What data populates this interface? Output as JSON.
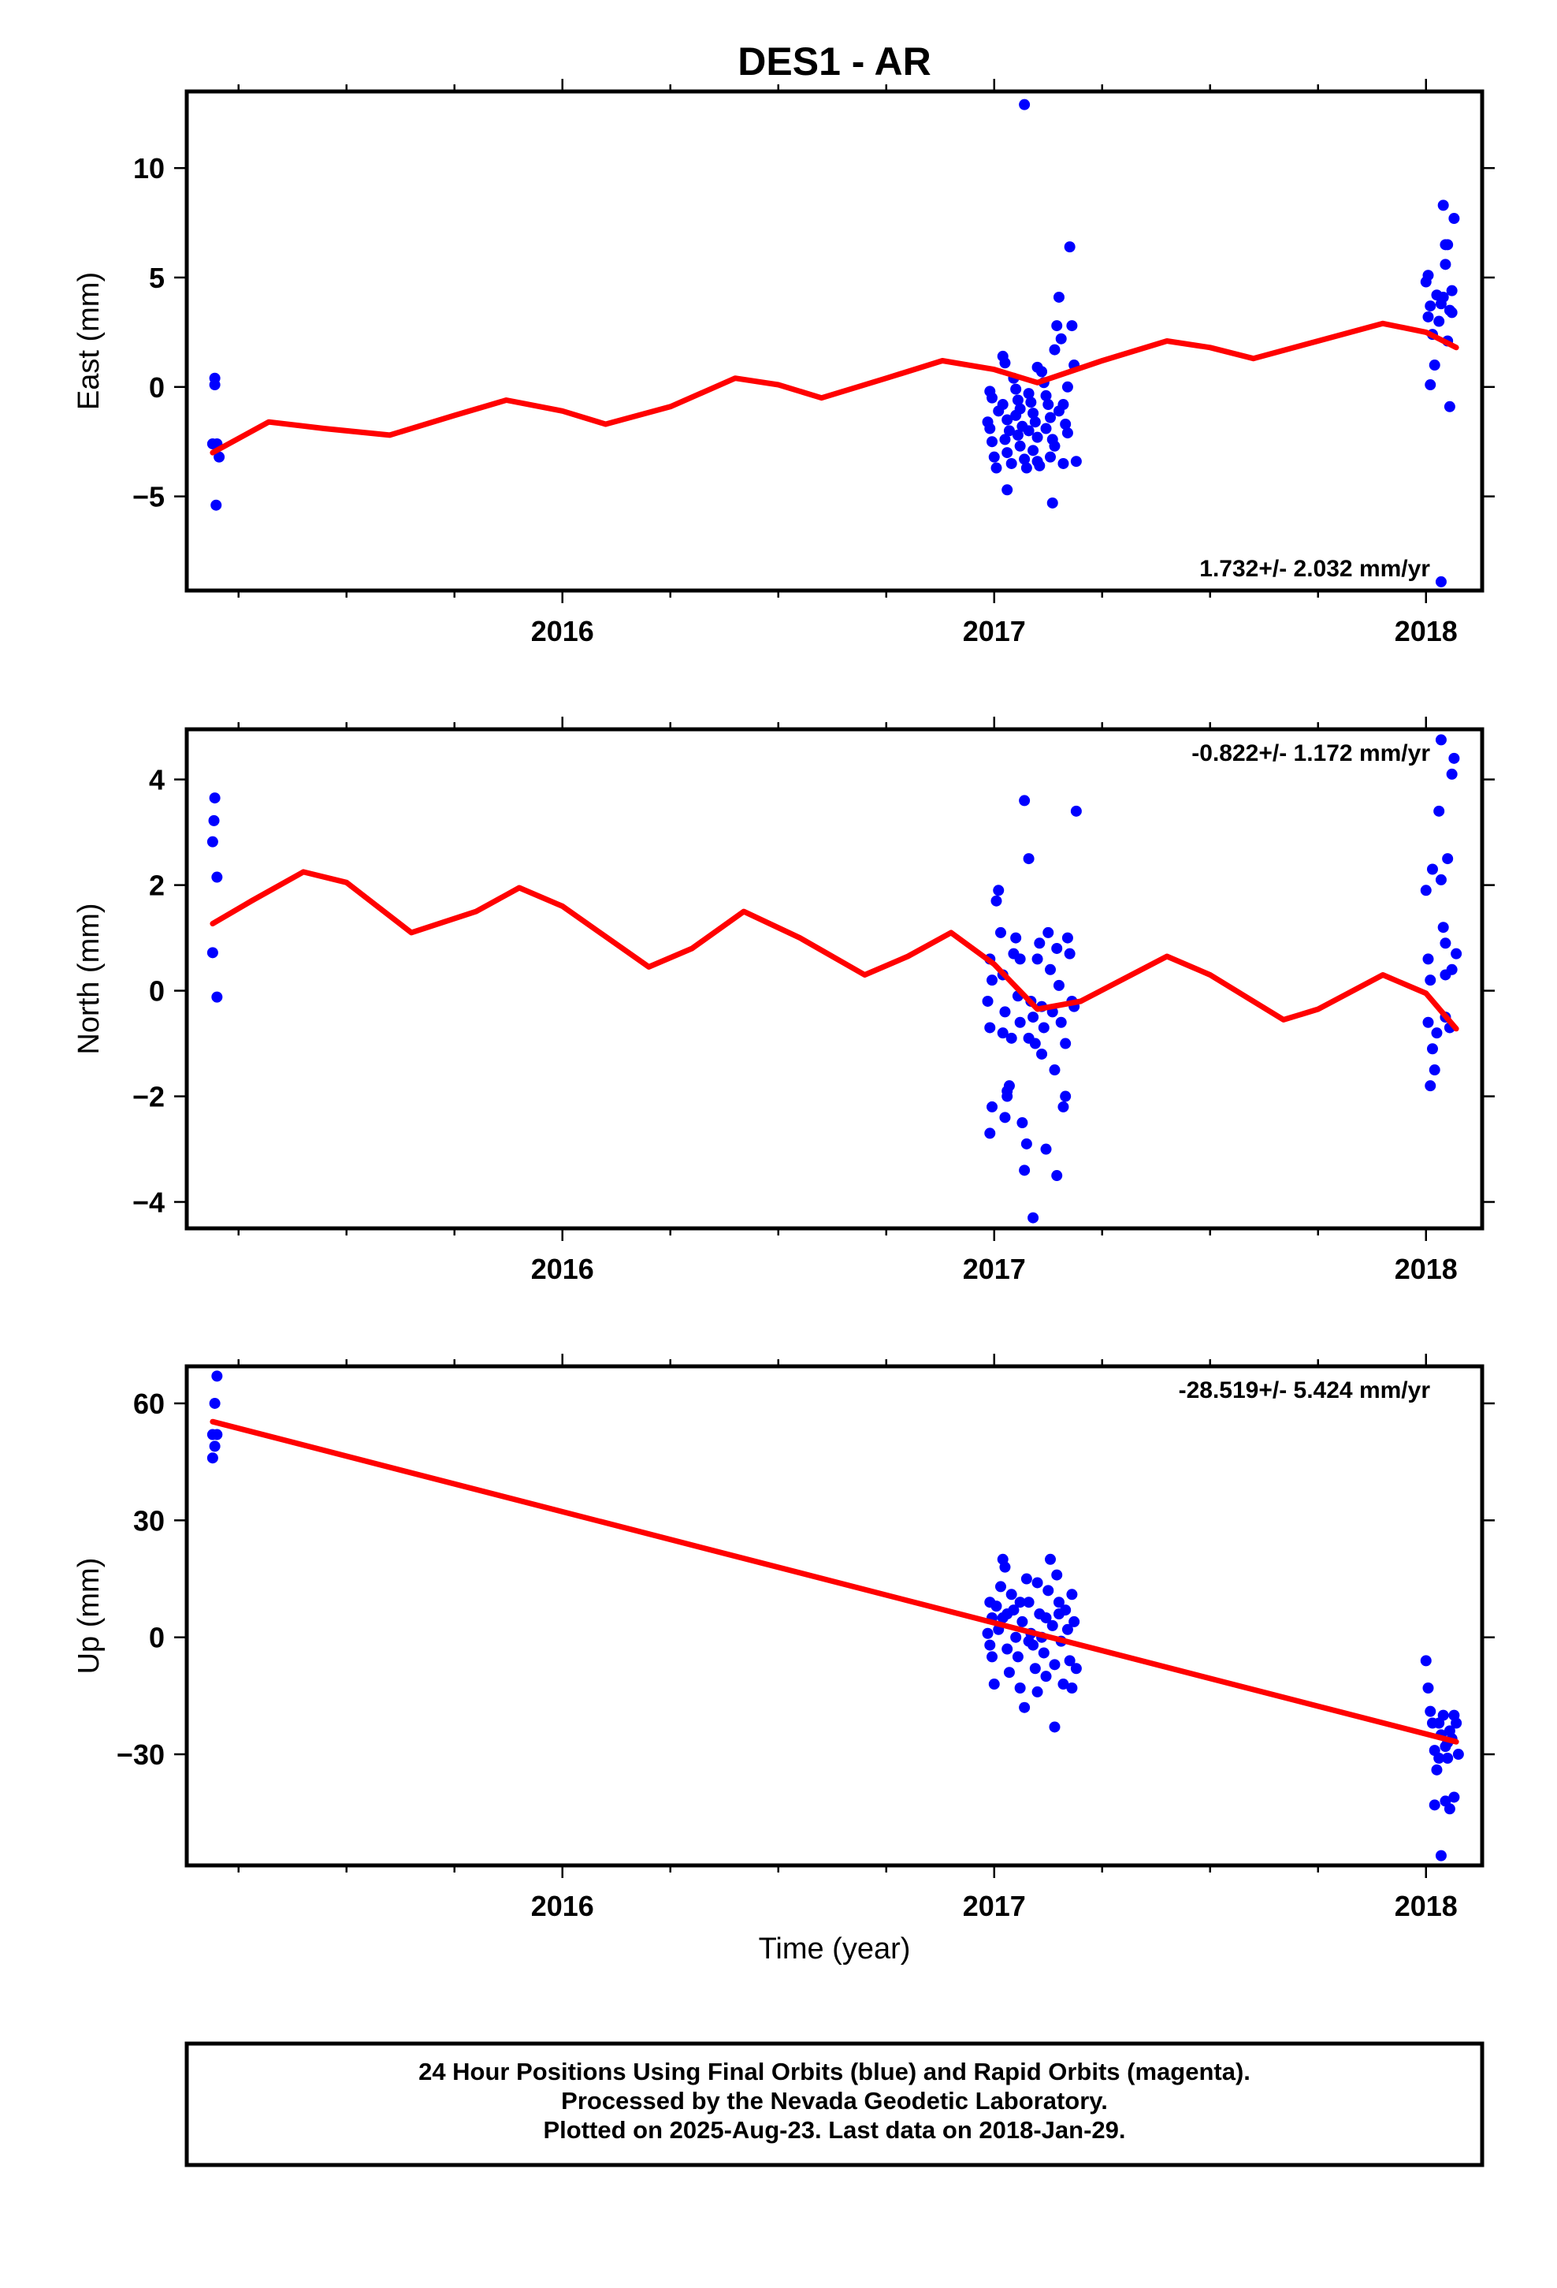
{
  "title": "DES1 - AR",
  "xlabel": "Time (year)",
  "colors": {
    "data": "#0000ff",
    "model": "#ff0000",
    "frame": "#000000"
  },
  "footer": {
    "line1": "24 Hour Positions Using Final Orbits (blue) and Rapid Orbits (magenta).",
    "line2": "Processed by the Nevada Geodetic Laboratory.",
    "line3": "Plotted on 2025-Aug-23. Last data on 2018-Jan-29."
  },
  "chart_data": [
    {
      "type": "scatter",
      "component": "east",
      "ylabel": "East (mm)",
      "xlim": [
        2015.13,
        2018.13
      ],
      "ylim": [
        -9.3,
        13.5
      ],
      "xticks": [
        2016,
        2017,
        2018
      ],
      "yticks": [
        -5,
        0,
        5,
        10
      ],
      "ytick_labels": [
        "−5",
        "0",
        "5",
        "10"
      ],
      "rate_text": "1.732+/- 2.032 mm/yr",
      "rate_position": "bottom-right",
      "points": [
        [
          2015.195,
          0.4
        ],
        [
          2015.195,
          0.1
        ],
        [
          2015.19,
          -2.6
        ],
        [
          2015.2,
          -2.6
        ],
        [
          2015.205,
          -3.2
        ],
        [
          2015.198,
          -5.4
        ],
        [
          2016.99,
          -0.2
        ],
        [
          2016.995,
          -0.5
        ],
        [
          2016.985,
          -1.6
        ],
        [
          2016.99,
          -1.9
        ],
        [
          2016.995,
          -2.5
        ],
        [
          2017.0,
          -3.2
        ],
        [
          2017.005,
          -3.7
        ],
        [
          2017.02,
          1.4
        ],
        [
          2017.025,
          1.1
        ],
        [
          2017.02,
          -0.8
        ],
        [
          2017.01,
          -1.1
        ],
        [
          2017.03,
          -1.5
        ],
        [
          2017.035,
          -2.0
        ],
        [
          2017.025,
          -2.4
        ],
        [
          2017.03,
          -3.0
        ],
        [
          2017.04,
          -3.5
        ],
        [
          2017.03,
          -4.7
        ],
        [
          2017.045,
          0.4
        ],
        [
          2017.05,
          -0.1
        ],
        [
          2017.055,
          -0.6
        ],
        [
          2017.06,
          -1.0
        ],
        [
          2017.05,
          -1.3
        ],
        [
          2017.065,
          -1.8
        ],
        [
          2017.055,
          -2.2
        ],
        [
          2017.06,
          -2.7
        ],
        [
          2017.07,
          -3.3
        ],
        [
          2017.075,
          -3.7
        ],
        [
          2017.07,
          12.9
        ],
        [
          2017.08,
          -0.3
        ],
        [
          2017.085,
          -0.7
        ],
        [
          2017.09,
          -1.2
        ],
        [
          2017.095,
          -1.6
        ],
        [
          2017.08,
          -2.0
        ],
        [
          2017.1,
          -2.3
        ],
        [
          2017.09,
          -2.9
        ],
        [
          2017.1,
          -3.4
        ],
        [
          2017.105,
          -3.6
        ],
        [
          2017.11,
          0.7
        ],
        [
          2017.115,
          0.2
        ],
        [
          2017.12,
          -0.4
        ],
        [
          2017.125,
          -0.8
        ],
        [
          2017.13,
          -1.4
        ],
        [
          2017.12,
          -1.9
        ],
        [
          2017.135,
          -2.4
        ],
        [
          2017.13,
          -3.2
        ],
        [
          2017.135,
          -5.3
        ],
        [
          2017.14,
          1.7
        ],
        [
          2017.145,
          2.8
        ],
        [
          2017.15,
          4.1
        ],
        [
          2017.155,
          2.2
        ],
        [
          2017.16,
          -0.8
        ],
        [
          2017.165,
          -1.7
        ],
        [
          2017.17,
          -2.1
        ],
        [
          2017.16,
          -3.5
        ],
        [
          2017.175,
          6.4
        ],
        [
          2017.18,
          2.8
        ],
        [
          2017.185,
          1.0
        ],
        [
          2017.19,
          -3.4
        ],
        [
          2017.17,
          0.0
        ],
        [
          2017.15,
          -1.1
        ],
        [
          2017.14,
          -2.7
        ],
        [
          2017.1,
          0.9
        ],
        [
          2018.005,
          5.1
        ],
        [
          2018.0,
          4.8
        ],
        [
          2018.01,
          3.7
        ],
        [
          2018.005,
          3.2
        ],
        [
          2018.015,
          2.4
        ],
        [
          2018.01,
          0.1
        ],
        [
          2018.02,
          1.0
        ],
        [
          2018.025,
          4.2
        ],
        [
          2018.03,
          3.0
        ],
        [
          2018.035,
          3.8
        ],
        [
          2018.04,
          8.3
        ],
        [
          2018.045,
          6.5
        ],
        [
          2018.04,
          4.1
        ],
        [
          2018.05,
          6.5
        ],
        [
          2018.045,
          5.6
        ],
        [
          2018.055,
          3.5
        ],
        [
          2018.05,
          2.1
        ],
        [
          2018.06,
          4.4
        ],
        [
          2018.065,
          7.7
        ],
        [
          2018.055,
          -0.9
        ],
        [
          2018.035,
          -8.9
        ],
        [
          2018.06,
          3.4
        ]
      ],
      "model": [
        [
          2015.19,
          -3.0
        ],
        [
          2015.32,
          -1.6
        ],
        [
          2015.45,
          -1.9
        ],
        [
          2015.6,
          -2.2
        ],
        [
          2015.75,
          -1.3
        ],
        [
          2015.87,
          -0.6
        ],
        [
          2016.0,
          -1.1
        ],
        [
          2016.1,
          -1.7
        ],
        [
          2016.25,
          -0.9
        ],
        [
          2016.4,
          0.4
        ],
        [
          2016.5,
          0.1
        ],
        [
          2016.6,
          -0.5
        ],
        [
          2016.75,
          0.4
        ],
        [
          2016.88,
          1.2
        ],
        [
          2017.0,
          0.8
        ],
        [
          2017.1,
          0.2
        ],
        [
          2017.25,
          1.2
        ],
        [
          2017.4,
          2.1
        ],
        [
          2017.5,
          1.8
        ],
        [
          2017.6,
          1.3
        ],
        [
          2017.75,
          2.1
        ],
        [
          2017.9,
          2.9
        ],
        [
          2018.0,
          2.5
        ],
        [
          2018.07,
          1.8
        ]
      ]
    },
    {
      "type": "scatter",
      "component": "north",
      "ylabel": "North (mm)",
      "xlim": [
        2015.13,
        2018.13
      ],
      "ylim": [
        -4.5,
        4.95
      ],
      "xticks": [
        2016,
        2017,
        2018
      ],
      "yticks": [
        -4,
        -2,
        0,
        2,
        4
      ],
      "ytick_labels": [
        "−4",
        "−2",
        "0",
        "2",
        "4"
      ],
      "rate_text": "-0.822+/- 1.172 mm/yr",
      "rate_position": "top-right",
      "points": [
        [
          2015.195,
          3.65
        ],
        [
          2015.193,
          3.22
        ],
        [
          2015.19,
          2.82
        ],
        [
          2015.2,
          2.15
        ],
        [
          2015.19,
          0.72
        ],
        [
          2015.2,
          -0.12
        ],
        [
          2016.99,
          0.6
        ],
        [
          2016.995,
          0.2
        ],
        [
          2016.985,
          -0.2
        ],
        [
          2016.99,
          -0.7
        ],
        [
          2016.995,
          -2.2
        ],
        [
          2016.99,
          -2.7
        ],
        [
          2017.005,
          1.7
        ],
        [
          2017.01,
          1.9
        ],
        [
          2017.015,
          1.1
        ],
        [
          2017.02,
          0.3
        ],
        [
          2017.025,
          -0.4
        ],
        [
          2017.02,
          -0.8
        ],
        [
          2017.03,
          -2.0
        ],
        [
          2017.025,
          -2.4
        ],
        [
          2017.035,
          -1.8
        ],
        [
          2017.04,
          -0.9
        ],
        [
          2017.045,
          0.7
        ],
        [
          2017.05,
          1.0
        ],
        [
          2017.055,
          -0.1
        ],
        [
          2017.06,
          -0.6
        ],
        [
          2017.065,
          -2.5
        ],
        [
          2017.07,
          3.6
        ],
        [
          2017.075,
          -2.9
        ],
        [
          2017.07,
          -3.4
        ],
        [
          2017.08,
          2.5
        ],
        [
          2017.085,
          -0.2
        ],
        [
          2017.09,
          -0.5
        ],
        [
          2017.095,
          -1.0
        ],
        [
          2017.09,
          -4.3
        ],
        [
          2017.1,
          0.6
        ],
        [
          2017.105,
          0.9
        ],
        [
          2017.11,
          -0.3
        ],
        [
          2017.115,
          -0.7
        ],
        [
          2017.12,
          -3.0
        ],
        [
          2017.125,
          1.1
        ],
        [
          2017.13,
          0.4
        ],
        [
          2017.135,
          -0.4
        ],
        [
          2017.14,
          -1.5
        ],
        [
          2017.145,
          0.8
        ],
        [
          2017.15,
          0.1
        ],
        [
          2017.155,
          -0.6
        ],
        [
          2017.16,
          -2.2
        ],
        [
          2017.165,
          -1.0
        ],
        [
          2017.17,
          1.0
        ],
        [
          2017.175,
          0.7
        ],
        [
          2017.18,
          -0.2
        ],
        [
          2017.185,
          -0.3
        ],
        [
          2017.19,
          3.4
        ],
        [
          2017.145,
          -3.5
        ],
        [
          2017.06,
          0.6
        ],
        [
          2017.11,
          -1.2
        ],
        [
          2017.165,
          -2.0
        ],
        [
          2017.03,
          -1.9
        ],
        [
          2017.08,
          -0.9
        ],
        [
          2018.0,
          1.9
        ],
        [
          2018.005,
          0.6
        ],
        [
          2018.01,
          0.2
        ],
        [
          2018.005,
          -0.6
        ],
        [
          2018.015,
          2.3
        ],
        [
          2018.02,
          -1.5
        ],
        [
          2018.01,
          -1.8
        ],
        [
          2018.025,
          -0.8
        ],
        [
          2018.03,
          3.4
        ],
        [
          2018.035,
          2.1
        ],
        [
          2018.04,
          1.2
        ],
        [
          2018.045,
          0.9
        ],
        [
          2018.05,
          2.5
        ],
        [
          2018.045,
          0.3
        ],
        [
          2018.055,
          -0.7
        ],
        [
          2018.06,
          0.4
        ],
        [
          2018.065,
          4.4
        ],
        [
          2018.06,
          4.1
        ],
        [
          2018.035,
          4.75
        ],
        [
          2018.045,
          -0.5
        ],
        [
          2018.07,
          0.7
        ],
        [
          2018.015,
          -1.1
        ]
      ],
      "model": [
        [
          2015.19,
          1.27
        ],
        [
          2015.28,
          1.7
        ],
        [
          2015.4,
          2.25
        ],
        [
          2015.5,
          2.05
        ],
        [
          2015.65,
          1.1
        ],
        [
          2015.8,
          1.5
        ],
        [
          2015.9,
          1.95
        ],
        [
          2016.0,
          1.6
        ],
        [
          2016.2,
          0.45
        ],
        [
          2016.3,
          0.8
        ],
        [
          2016.42,
          1.5
        ],
        [
          2016.55,
          1.0
        ],
        [
          2016.7,
          0.3
        ],
        [
          2016.8,
          0.65
        ],
        [
          2016.9,
          1.1
        ],
        [
          2017.0,
          0.5
        ],
        [
          2017.1,
          -0.35
        ],
        [
          2017.2,
          -0.2
        ],
        [
          2017.4,
          0.65
        ],
        [
          2017.5,
          0.3
        ],
        [
          2017.67,
          -0.55
        ],
        [
          2017.75,
          -0.35
        ],
        [
          2017.9,
          0.3
        ],
        [
          2018.0,
          -0.05
        ],
        [
          2018.07,
          -0.72
        ]
      ]
    },
    {
      "type": "scatter",
      "component": "up",
      "ylabel": "Up (mm)",
      "xlim": [
        2015.13,
        2018.13
      ],
      "ylim": [
        -58.5,
        69.5
      ],
      "xticks": [
        2016,
        2017,
        2018
      ],
      "yticks": [
        -30,
        0,
        30,
        60
      ],
      "ytick_labels": [
        "−30",
        "0",
        "30",
        "60"
      ],
      "rate_text": "-28.519+/- 5.424 mm/yr",
      "rate_position": "top-right",
      "points": [
        [
          2015.2,
          67
        ],
        [
          2015.195,
          60
        ],
        [
          2015.19,
          52
        ],
        [
          2015.2,
          52
        ],
        [
          2015.195,
          49
        ],
        [
          2015.19,
          46
        ],
        [
          2016.99,
          9
        ],
        [
          2016.995,
          5
        ],
        [
          2016.985,
          1
        ],
        [
          2016.99,
          -2
        ],
        [
          2016.995,
          -5
        ],
        [
          2017.0,
          -12
        ],
        [
          2017.005,
          8
        ],
        [
          2017.01,
          2
        ],
        [
          2017.015,
          13
        ],
        [
          2017.02,
          20
        ],
        [
          2017.025,
          18
        ],
        [
          2017.02,
          5
        ],
        [
          2017.03,
          -3
        ],
        [
          2017.035,
          -9
        ],
        [
          2017.04,
          11
        ],
        [
          2017.045,
          7
        ],
        [
          2017.05,
          0
        ],
        [
          2017.055,
          -5
        ],
        [
          2017.06,
          -13
        ],
        [
          2017.065,
          4
        ],
        [
          2017.07,
          -18
        ],
        [
          2017.075,
          15
        ],
        [
          2017.08,
          9
        ],
        [
          2017.085,
          1
        ],
        [
          2017.09,
          -2
        ],
        [
          2017.095,
          -8
        ],
        [
          2017.1,
          14
        ],
        [
          2017.105,
          6
        ],
        [
          2017.11,
          0
        ],
        [
          2017.115,
          -4
        ],
        [
          2017.12,
          -10
        ],
        [
          2017.125,
          12
        ],
        [
          2017.13,
          20
        ],
        [
          2017.135,
          3
        ],
        [
          2017.14,
          -7
        ],
        [
          2017.14,
          -23
        ],
        [
          2017.145,
          16
        ],
        [
          2017.15,
          9
        ],
        [
          2017.155,
          -1
        ],
        [
          2017.16,
          -12
        ],
        [
          2017.165,
          7
        ],
        [
          2017.17,
          2
        ],
        [
          2017.175,
          -6
        ],
        [
          2017.18,
          11
        ],
        [
          2017.185,
          4
        ],
        [
          2017.19,
          -8
        ],
        [
          2017.18,
          -13
        ],
        [
          2017.06,
          9
        ],
        [
          2017.1,
          -14
        ],
        [
          2017.03,
          6
        ],
        [
          2017.12,
          5
        ],
        [
          2017.08,
          -1
        ],
        [
          2017.15,
          6
        ],
        [
          2018.0,
          -6
        ],
        [
          2018.005,
          -13
        ],
        [
          2018.01,
          -19
        ],
        [
          2018.015,
          -22
        ],
        [
          2018.02,
          -29
        ],
        [
          2018.025,
          -34
        ],
        [
          2018.03,
          -31
        ],
        [
          2018.035,
          -25
        ],
        [
          2018.04,
          -20
        ],
        [
          2018.045,
          -28
        ],
        [
          2018.05,
          -31
        ],
        [
          2018.055,
          -24
        ],
        [
          2018.06,
          -26
        ],
        [
          2018.065,
          -20
        ],
        [
          2018.07,
          -22
        ],
        [
          2018.075,
          -30
        ],
        [
          2018.065,
          -41
        ],
        [
          2018.055,
          -44
        ],
        [
          2018.045,
          -42
        ],
        [
          2018.035,
          -56
        ],
        [
          2018.02,
          -43
        ],
        [
          2018.03,
          -22
        ],
        [
          2018.05,
          -27
        ]
      ],
      "model": [
        [
          2015.19,
          55.3
        ],
        [
          2018.07,
          -26.8
        ]
      ]
    }
  ]
}
